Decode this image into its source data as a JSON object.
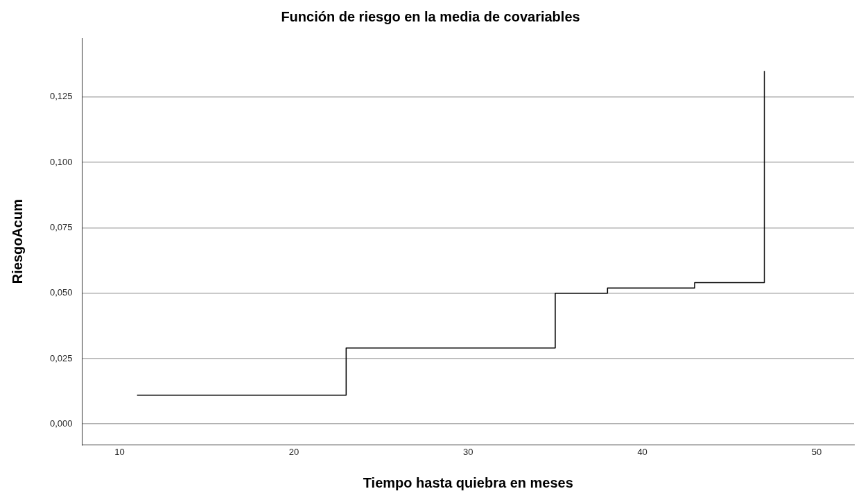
{
  "chart_data": {
    "type": "step",
    "title": "Función de riesgo en la media de covariables",
    "xlabel": "Tiempo hasta quiebra en meses",
    "ylabel": "RiesgoAcum",
    "x": [
      11,
      23,
      35,
      38,
      43,
      47
    ],
    "series": [
      {
        "color": "#000000",
        "values": [
          0.011,
          0.029,
          0.05,
          0.052,
          0.054,
          0.135
        ]
      }
    ],
    "xlim": [
      7.85,
      52.15
    ],
    "xticks": [
      10,
      20,
      30,
      40,
      50
    ],
    "ylim": [
      -0.008,
      0.1475
    ],
    "yticks": [
      {
        "value": 0,
        "label": "0,000"
      },
      {
        "value": 0.025,
        "label": "0,025"
      },
      {
        "value": 0.05,
        "label": "0,050"
      },
      {
        "value": 0.075,
        "label": "0,075"
      },
      {
        "value": 0.1,
        "label": "0,100"
      },
      {
        "value": 0.125,
        "label": "0,125"
      }
    ],
    "grid": "y",
    "legend": false,
    "marker": "none",
    "line_style": "solid"
  }
}
